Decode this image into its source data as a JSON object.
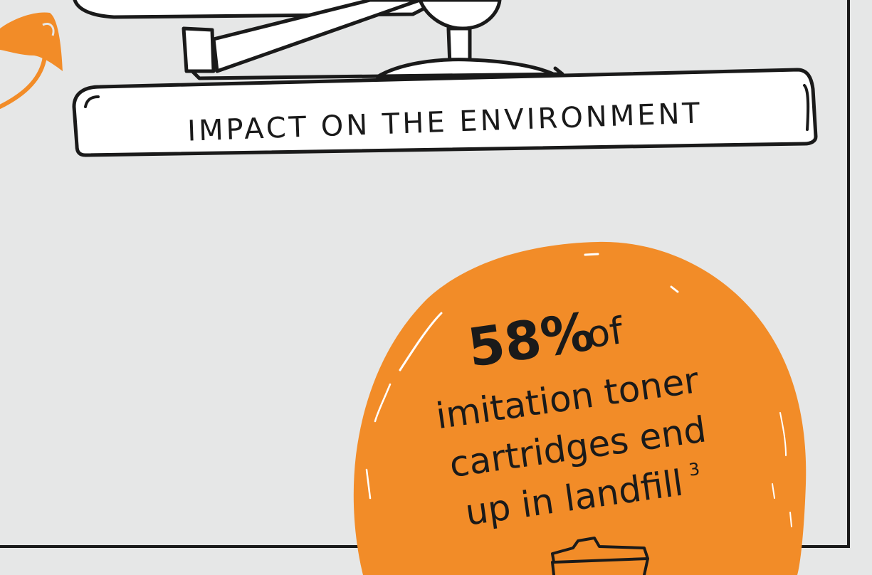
{
  "banner": {
    "text": "IMPACT ON THE ENVIRONMENT"
  },
  "stat": {
    "percent": "58%",
    "of": "of",
    "line1": "imitation toner",
    "line2": "cartridges end",
    "line3": "up in landfill",
    "footnote": "3"
  },
  "colors": {
    "background": "#e6e7e7",
    "accent": "#f28c28",
    "ink": "#1a1a1a",
    "paper": "#ffffff"
  }
}
